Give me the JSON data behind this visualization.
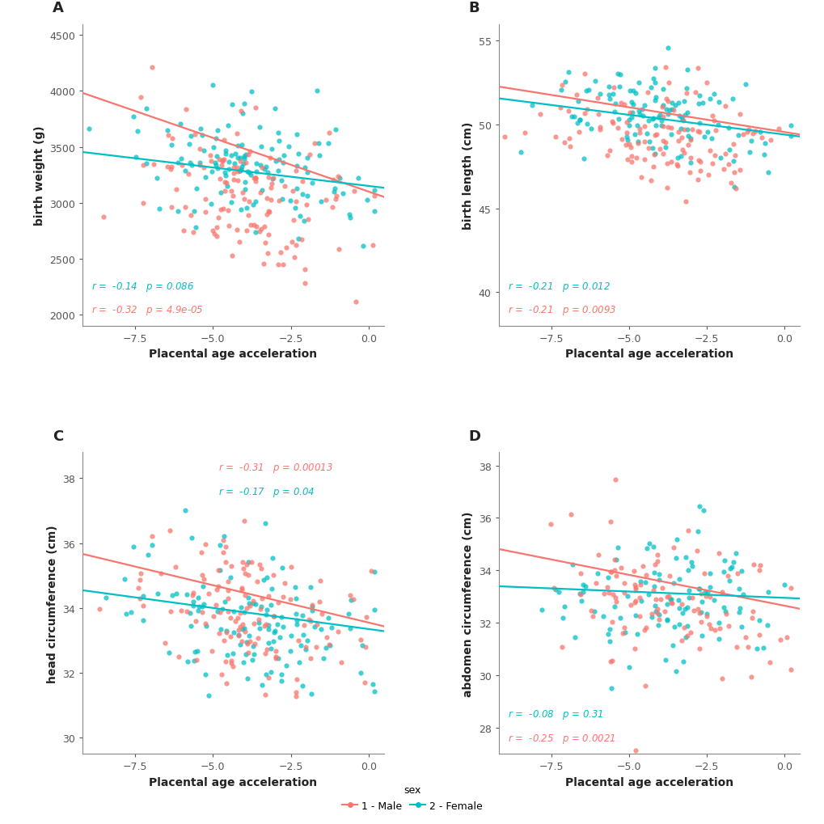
{
  "male_color": "#F8766D",
  "female_color": "#00BFC4",
  "panels": [
    {
      "label": "A",
      "ylabel": "birth weight (g)",
      "xlabel": "Placental age acceleration",
      "xlim": [
        -9.2,
        0.5
      ],
      "ylim": [
        1900,
        4600
      ],
      "yticks": [
        2000,
        2500,
        3000,
        3500,
        4000,
        4500
      ],
      "xticks": [
        -7.5,
        -5.0,
        -2.5,
        0.0
      ],
      "male_r": -0.32,
      "male_p": "4.9e-05",
      "female_r": -0.14,
      "female_p": "0.086",
      "stats_pos": "lower_left",
      "male_line_slope": -96.0,
      "male_line_intercept": 3100,
      "female_line_slope": -33.0,
      "female_line_intercept": 3150
    },
    {
      "label": "B",
      "ylabel": "birth length (cm)",
      "xlabel": "Placental age acceleration",
      "xlim": [
        -9.2,
        0.5
      ],
      "ylim": [
        38.0,
        56.0
      ],
      "yticks": [
        40,
        45,
        50,
        55
      ],
      "xticks": [
        -7.5,
        -5.0,
        -2.5,
        0.0
      ],
      "male_r": -0.21,
      "male_p": "0.0093",
      "female_r": -0.21,
      "female_p": "0.012",
      "stats_pos": "lower_left",
      "male_line_slope": -0.295,
      "male_line_intercept": 49.55,
      "female_line_slope": -0.235,
      "female_line_intercept": 49.4
    },
    {
      "label": "C",
      "ylabel": "head circumference (cm)",
      "xlabel": "Placental age acceleration",
      "xlim": [
        -9.2,
        0.5
      ],
      "ylim": [
        29.5,
        38.8
      ],
      "yticks": [
        30,
        32,
        34,
        36,
        38
      ],
      "xticks": [
        -7.5,
        -5.0,
        -2.5,
        0.0
      ],
      "male_r": -0.31,
      "male_p": "0.00013",
      "female_r": -0.17,
      "female_p": "0.04",
      "stats_pos": "upper_right",
      "male_line_slope": -0.23,
      "male_line_intercept": 33.55,
      "female_line_slope": -0.13,
      "female_line_intercept": 33.35
    },
    {
      "label": "D",
      "ylabel": "abdomen circumference (cm)",
      "xlabel": "Placental age acceleration",
      "xlim": [
        -9.2,
        0.5
      ],
      "ylim": [
        27.0,
        38.5
      ],
      "yticks": [
        28,
        30,
        32,
        34,
        36,
        38
      ],
      "xticks": [
        -7.5,
        -5.0,
        -2.5,
        0.0
      ],
      "male_r": -0.25,
      "male_p": "0.0021",
      "female_r": -0.08,
      "female_p": "0.31",
      "stats_pos": "lower_left",
      "male_line_slope": -0.235,
      "male_line_intercept": 32.65,
      "female_line_slope": -0.048,
      "female_line_intercept": 32.95
    }
  ],
  "legend_label_male": "1 - Male",
  "legend_label_female": "2 - Female",
  "legend_title": "sex"
}
